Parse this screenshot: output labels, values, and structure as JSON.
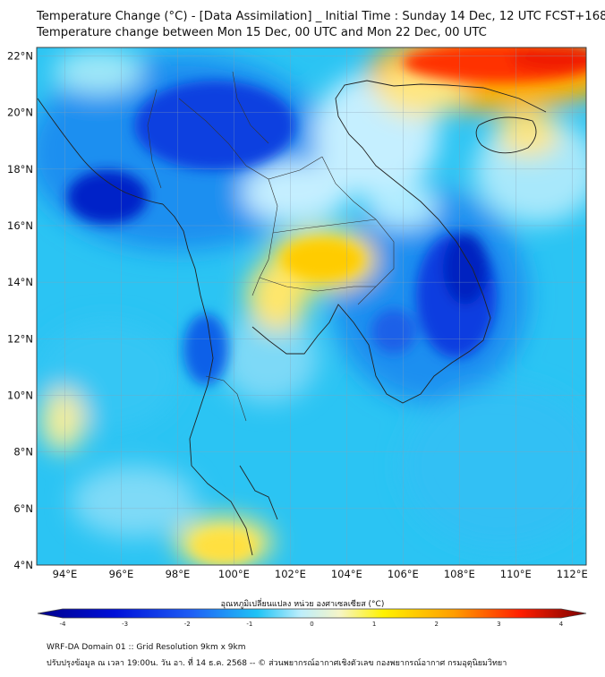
{
  "header": {
    "title_line1": "Temperature Change (°C) - [Data Assimilation] _ Initial Time : Sunday 14 Dec, 12 UTC FCST+168",
    "title_line2": "Temperature change between Mon 15 Dec, 00 UTC and Mon 22 Dec, 00 UTC"
  },
  "map": {
    "lat_labels": [
      "22°N",
      "20°N",
      "18°N",
      "16°N",
      "14°N",
      "12°N",
      "10°N",
      "8°N",
      "6°N",
      "4°N"
    ],
    "lat_values": [
      22,
      20,
      18,
      16,
      14,
      12,
      10,
      8,
      6,
      4
    ],
    "lon_labels": [
      "94°E",
      "96°E",
      "98°E",
      "100°E",
      "102°E",
      "104°E",
      "106°E",
      "108°E",
      "110°E",
      "112°E"
    ],
    "lon_values": [
      94,
      96,
      98,
      100,
      102,
      104,
      106,
      108,
      110,
      112
    ],
    "lon_range": [
      93,
      112.5
    ],
    "lat_range": [
      4,
      22.3
    ]
  },
  "colorbar": {
    "title": "อุณหภูมิเปลี่ยนแปลง หน่วย องศาเซลเซียส (°C)",
    "tick_labels": [
      "-4",
      "-3",
      "-2",
      "-1",
      "0",
      "1",
      "2",
      "3",
      "4"
    ],
    "range": [
      -4,
      4
    ]
  },
  "footer": {
    "line1": "WRF-DA Domain 01 :: Grid Resolution 9km x 9km",
    "line2": "ปรับปรุงข้อมูล ณ เวลา 19:00น. วัน อา. ที่ 14 ธ.ค. 2568 -- © ส่วนพยากรณ์อากาศเชิงตัวเลข กองพยากรณ์อากาศ กรมอุตุนิยมวิทยา"
  },
  "colors": {
    "cold_extreme": "#00008b",
    "cold": "#0033dd",
    "cool": "#1e90ff",
    "neutral_cool": "#00bfff",
    "neutral": "#e0f8ff",
    "warm": "#ffe000",
    "hot": "#ff2200",
    "hot_extreme": "#8b0000"
  }
}
